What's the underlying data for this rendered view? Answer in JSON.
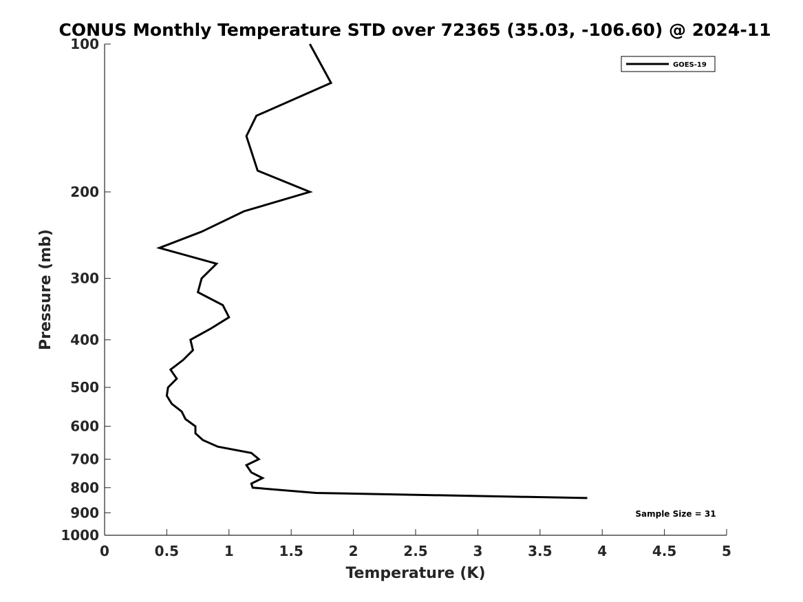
{
  "chart_data": {
    "type": "line",
    "title": "CONUS Monthly Temperature STD over 72365 (35.03, -106.60) @ 2024-11",
    "xlabel": "Temperature (K)",
    "ylabel": "Pressure (mb)",
    "xlim": [
      0,
      5
    ],
    "ylim": [
      100,
      1000
    ],
    "y_scale": "log",
    "y_reversed": true,
    "grid": false,
    "x_ticks": [
      0,
      0.5,
      1,
      1.5,
      2,
      2.5,
      3,
      3.5,
      4,
      4.5,
      5
    ],
    "x_tick_labels": [
      "0",
      "0.5",
      "1",
      "1.5",
      "2",
      "2.5",
      "3",
      "3.5",
      "4",
      "4.5",
      "5"
    ],
    "y_ticks": [
      100,
      200,
      300,
      400,
      500,
      600,
      700,
      800,
      900,
      1000
    ],
    "y_tick_labels": [
      "100",
      "200",
      "300",
      "400",
      "500",
      "600",
      "700",
      "800",
      "900",
      "1000"
    ],
    "legend": {
      "placement": "top-right",
      "entries": [
        "GOES-19"
      ]
    },
    "annotation": "Sample Size = 31",
    "series": [
      {
        "name": "GOES-19",
        "color": "#000000",
        "points": [
          {
            "x": 1.65,
            "y": 100
          },
          {
            "x": 1.82,
            "y": 120
          },
          {
            "x": 1.22,
            "y": 140
          },
          {
            "x": 1.14,
            "y": 154
          },
          {
            "x": 1.23,
            "y": 181
          },
          {
            "x": 1.65,
            "y": 200
          },
          {
            "x": 1.12,
            "y": 219
          },
          {
            "x": 0.78,
            "y": 241
          },
          {
            "x": 0.44,
            "y": 260
          },
          {
            "x": 0.9,
            "y": 280
          },
          {
            "x": 0.78,
            "y": 300
          },
          {
            "x": 0.75,
            "y": 320
          },
          {
            "x": 0.95,
            "y": 340
          },
          {
            "x": 1.0,
            "y": 360
          },
          {
            "x": 0.85,
            "y": 380
          },
          {
            "x": 0.69,
            "y": 400
          },
          {
            "x": 0.71,
            "y": 420
          },
          {
            "x": 0.63,
            "y": 440
          },
          {
            "x": 0.53,
            "y": 460
          },
          {
            "x": 0.58,
            "y": 480
          },
          {
            "x": 0.51,
            "y": 500
          },
          {
            "x": 0.5,
            "y": 520
          },
          {
            "x": 0.54,
            "y": 540
          },
          {
            "x": 0.62,
            "y": 560
          },
          {
            "x": 0.65,
            "y": 580
          },
          {
            "x": 0.73,
            "y": 600
          },
          {
            "x": 0.73,
            "y": 620
          },
          {
            "x": 0.79,
            "y": 640
          },
          {
            "x": 0.91,
            "y": 660
          },
          {
            "x": 1.18,
            "y": 680
          },
          {
            "x": 1.24,
            "y": 700
          },
          {
            "x": 1.14,
            "y": 720
          },
          {
            "x": 1.18,
            "y": 745
          },
          {
            "x": 1.27,
            "y": 765
          },
          {
            "x": 1.18,
            "y": 785
          },
          {
            "x": 1.19,
            "y": 800
          },
          {
            "x": 1.7,
            "y": 820
          },
          {
            "x": 3.88,
            "y": 840
          }
        ]
      }
    ]
  }
}
